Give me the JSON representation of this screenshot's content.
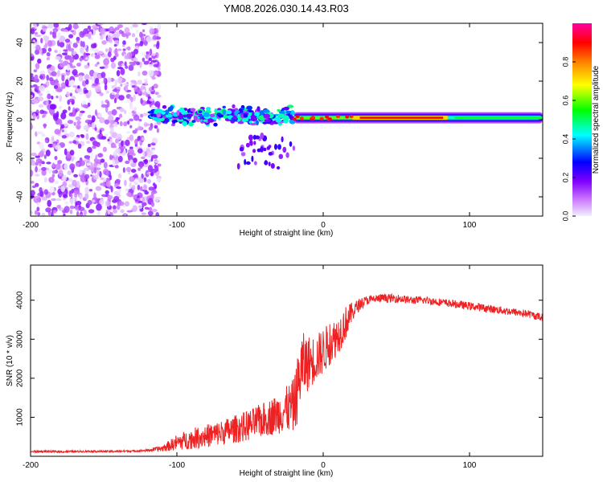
{
  "title": "YM08.2026.030.14.43.R03",
  "chart_data": [
    {
      "type": "heatmap",
      "xlabel": "Height of straight line (km)",
      "ylabel": "Frequency (Hz)",
      "xlim": [
        -200,
        150
      ],
      "ylim": [
        -50,
        50
      ],
      "xticks": [
        -200,
        -100,
        0,
        100
      ],
      "yticks": [
        -40,
        -20,
        0,
        20,
        40
      ],
      "colorbar": {
        "label": "Normalized spectral amplitude",
        "range": [
          0,
          1
        ],
        "ticks": [
          "0.0",
          "0.2",
          "0.4",
          "0.6",
          "0.8"
        ],
        "tick_values": [
          0.0,
          0.2,
          0.4,
          0.6,
          0.8
        ],
        "colors": [
          "#f0f0ff",
          "#d080ff",
          "#8000ff",
          "#0000ff",
          "#00ffff",
          "#00ff00",
          "#ffff00",
          "#ff8000",
          "#ff0000",
          "#ff00a0"
        ]
      },
      "regions": [
        {
          "name": "noise",
          "x": [
            -200,
            -112
          ],
          "freq_range": [
            -50,
            50
          ],
          "amplitude": [
            0.0,
            0.18
          ]
        },
        {
          "name": "scattered_echoes",
          "x": [
            -118,
            -20
          ],
          "freq_range": [
            -8,
            8
          ],
          "amplitude": [
            0.1,
            0.5
          ]
        },
        {
          "name": "tail",
          "x": [
            -60,
            -20
          ],
          "freq_range": [
            -25,
            -8
          ],
          "amplitude": [
            0.1,
            0.25
          ]
        },
        {
          "name": "line_signal",
          "x": [
            -20,
            150
          ],
          "center_freq": 1,
          "amplitude": [
            0.5,
            0.95
          ]
        }
      ]
    },
    {
      "type": "line",
      "xlabel": "Height of straight line (km)",
      "ylabel": "SNR (10 * v/v)",
      "xlim": [
        -200,
        150
      ],
      "ylim": [
        0,
        4900
      ],
      "xticks": [
        -200,
        -100,
        0,
        100
      ],
      "yticks": [
        1000,
        2000,
        3000,
        4000
      ],
      "color": "#ee2222",
      "x": [
        -200,
        -190,
        -180,
        -170,
        -160,
        -150,
        -140,
        -130,
        -120,
        -110,
        -100,
        -90,
        -80,
        -70,
        -60,
        -50,
        -40,
        -30,
        -25,
        -20,
        -17,
        -15,
        -10,
        -5,
        0,
        5,
        10,
        15,
        20,
        25,
        30,
        40,
        50,
        60,
        70,
        80,
        90,
        100,
        110,
        120,
        130,
        140,
        150
      ],
      "y": [
        120,
        125,
        118,
        122,
        130,
        125,
        128,
        135,
        150,
        200,
        350,
        450,
        520,
        600,
        700,
        800,
        950,
        1100,
        1200,
        1300,
        1800,
        2300,
        2400,
        2500,
        2700,
        2900,
        3100,
        3400,
        3700,
        3900,
        4000,
        4050,
        4050,
        4000,
        4000,
        3950,
        3900,
        3850,
        3800,
        3750,
        3700,
        3650,
        3550
      ],
      "noise_amplitude": [
        25,
        25,
        25,
        25,
        25,
        25,
        25,
        25,
        30,
        80,
        200,
        260,
        300,
        320,
        360,
        400,
        450,
        520,
        600,
        700,
        900,
        900,
        700,
        600,
        600,
        550,
        500,
        450,
        250,
        150,
        120,
        110,
        110,
        100,
        100,
        100,
        100,
        100,
        100,
        100,
        100,
        100,
        100
      ]
    }
  ]
}
